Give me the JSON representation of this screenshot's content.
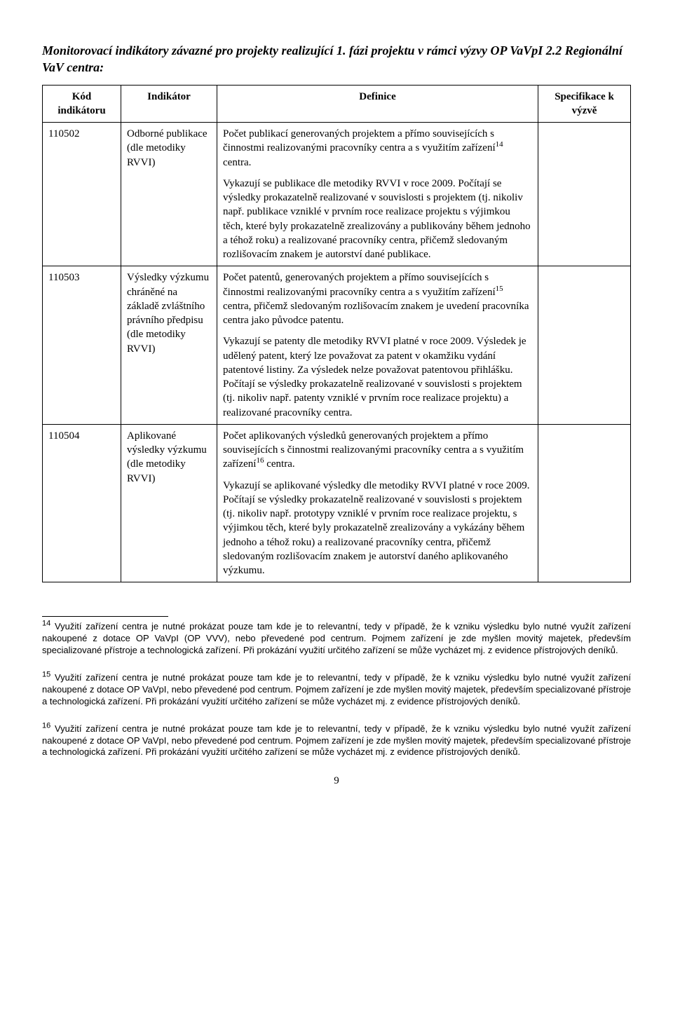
{
  "title": "Monitorovací indikátory závazné pro projekty realizující 1. fázi projektu v rámci výzvy OP VaVpI 2.2 Regionální VaV centra:",
  "table": {
    "headers": {
      "kod": "Kód indikátoru",
      "indikator": "Indikátor",
      "definice": "Definice",
      "specifikace": "Specifikace k výzvě"
    },
    "rows": [
      {
        "kod": "110502",
        "indikator": "Odborné publikace (dle metodiky RVVI)",
        "def_p1": "Počet publikací generovaných projektem a přímo souvisejících s činnostmi realizovanými pracovníky centra a s využitím zařízení",
        "def_p1_sup": "14",
        "def_p1_tail": " centra.",
        "def_p2": "Vykazují se publikace dle metodiky RVVI v roce 2009. Počítají se výsledky prokazatelně realizované v souvislosti s projektem (tj. nikoliv např. publikace vzniklé v prvním roce realizace projektu s výjimkou těch, které byly prokazatelně zrealizovány a publikovány během jednoho a téhož roku) a realizované pracovníky centra, přičemž sledovaným rozlišovacím znakem je autorství dané publikace.",
        "spec": ""
      },
      {
        "kod": "110503",
        "indikator": "Výsledky výzkumu chráněné na základě zvláštního právního předpisu (dle metodiky RVVI)",
        "def_p1": "Počet patentů, generovaných projektem a přímo souvisejících s činnostmi realizovanými pracovníky centra a s využitím zařízení",
        "def_p1_sup": "15",
        "def_p1_tail": " centra, přičemž sledovaným rozlišovacím znakem je uvedení pracovníka centra jako původce patentu.",
        "def_p2": "Vykazují se patenty dle metodiky RVVI platné v roce 2009. Výsledek je udělený patent, který lze považovat za patent v okamžiku vydání patentové listiny. Za výsledek nelze považovat patentovou přihlášku. Počítají se výsledky prokazatelně realizované v souvislosti s projektem (tj. nikoliv např. patenty vzniklé v prvním roce realizace projektu) a realizované pracovníky centra.",
        "spec": ""
      },
      {
        "kod": "110504",
        "indikator": "Aplikované výsledky výzkumu (dle metodiky RVVI)",
        "def_p1": "Počet aplikovaných výsledků generovaných projektem a přímo souvisejících s činnostmi realizovanými pracovníky centra a s využitím zařízení",
        "def_p1_sup": "16",
        "def_p1_tail": " centra.",
        "def_p2": "Vykazují se aplikované výsledky dle metodiky RVVI platné v roce 2009. Počítají se výsledky prokazatelně realizované v souvislosti s projektem (tj. nikoliv např. prototypy vzniklé v prvním roce realizace projektu, s výjimkou těch, které byly prokazatelně zrealizovány a vykázány během jednoho a téhož roku) a realizované pracovníky centra, přičemž sledovaným rozlišovacím znakem je autorství daného aplikovaného výzkumu.",
        "spec": ""
      }
    ]
  },
  "footnotes": [
    {
      "num": "14",
      "text": " Využití zařízení centra je nutné prokázat pouze tam kde je to relevantní, tedy v případě, že k vzniku výsledku bylo nutné využít zařízení nakoupené z dotace OP VaVpI (OP VVV), nebo převedené pod centrum. Pojmem zařízení je zde myšlen movitý majetek, především specializované přístroje a technologická zařízení. Při prokázání využití určitého zařízení se může vycházet mj. z evidence přístrojových deníků."
    },
    {
      "num": "15",
      "text": " Využití zařízení centra je nutné prokázat pouze tam kde je to relevantní, tedy v případě, že k vzniku výsledku bylo nutné využít zařízení nakoupené z dotace OP VaVpI, nebo převedené pod centrum. Pojmem zařízení je zde myšlen movitý majetek, především specializované přístroje a technologická zařízení. Při prokázání využití určitého zařízení se může vycházet mj. z evidence přístrojových deníků."
    },
    {
      "num": "16",
      "text": " Využití zařízení centra je nutné prokázat pouze tam kde je to relevantní, tedy v případě, že k vzniku výsledku bylo nutné využít zařízení nakoupené z dotace OP VaVpI, nebo převedené pod centrum. Pojmem zařízení je zde myšlen movitý majetek, především specializované přístroje a technologická zařízení. Při prokázání využití určitého zařízení se může vycházet mj. z evidence přístrojových deníků."
    }
  ],
  "pagenum": "9"
}
